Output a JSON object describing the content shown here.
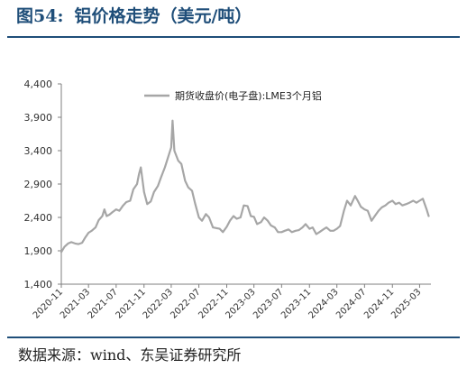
{
  "figure": {
    "number": "图54:",
    "title": "铝价格走势（美元/吨）",
    "source": "数据来源：wind、东吴证券研究所"
  },
  "colors": {
    "title": "#1f4e79",
    "rule": "#1f4e79",
    "series": "#a6a6a6",
    "axis": "#7f7f7f"
  },
  "chart_data": {
    "type": "line",
    "title": "",
    "xlabel": "",
    "ylabel": "",
    "ylim": [
      1400,
      4400
    ],
    "yticks": [
      "1,400",
      "1,900",
      "2,400",
      "2,900",
      "3,400",
      "3,900",
      "4,400"
    ],
    "ytick_values": [
      1400,
      1900,
      2400,
      2900,
      3400,
      3900,
      4400
    ],
    "xlim": [
      "2020-11-01",
      "2025-04-20"
    ],
    "xticks": [
      "2020-11",
      "2021-03",
      "2021-07",
      "2021-11",
      "2022-03",
      "2022-07",
      "2022-11",
      "2023-03",
      "2023-07",
      "2023-11",
      "2024-03",
      "2024-07",
      "2024-11",
      "2025-03"
    ],
    "grid": false,
    "legend": "top-center",
    "series": [
      {
        "name": "期货收盘价(电子盘):LME3个月铝",
        "x": [
          "2020-11-01",
          "2020-11-15",
          "2020-12-01",
          "2020-12-15",
          "2021-01-01",
          "2021-01-15",
          "2021-02-01",
          "2021-02-15",
          "2021-03-01",
          "2021-03-15",
          "2021-04-01",
          "2021-04-15",
          "2021-05-01",
          "2021-05-10",
          "2021-05-20",
          "2021-06-01",
          "2021-06-15",
          "2021-07-01",
          "2021-07-15",
          "2021-08-01",
          "2021-08-15",
          "2021-09-01",
          "2021-09-15",
          "2021-10-01",
          "2021-10-10",
          "2021-10-18",
          "2021-11-01",
          "2021-11-15",
          "2021-12-01",
          "2021-12-15",
          "2022-01-01",
          "2022-01-15",
          "2022-02-01",
          "2022-02-15",
          "2022-03-01",
          "2022-03-07",
          "2022-03-15",
          "2022-04-01",
          "2022-04-15",
          "2022-05-01",
          "2022-05-15",
          "2022-06-01",
          "2022-06-15",
          "2022-07-01",
          "2022-07-15",
          "2022-08-01",
          "2022-08-15",
          "2022-09-01",
          "2022-09-15",
          "2022-10-01",
          "2022-10-15",
          "2022-11-01",
          "2022-11-15",
          "2022-12-01",
          "2022-12-15",
          "2023-01-01",
          "2023-01-15",
          "2023-02-01",
          "2023-02-15",
          "2023-03-01",
          "2023-03-15",
          "2023-04-01",
          "2023-04-15",
          "2023-05-01",
          "2023-05-15",
          "2023-06-01",
          "2023-06-15",
          "2023-07-01",
          "2023-07-15",
          "2023-08-01",
          "2023-08-15",
          "2023-09-01",
          "2023-09-15",
          "2023-10-01",
          "2023-10-15",
          "2023-11-01",
          "2023-11-15",
          "2023-12-01",
          "2023-12-15",
          "2024-01-01",
          "2024-01-15",
          "2024-02-01",
          "2024-02-15",
          "2024-03-01",
          "2024-03-15",
          "2024-04-01",
          "2024-04-15",
          "2024-05-01",
          "2024-05-20",
          "2024-06-01",
          "2024-06-15",
          "2024-07-01",
          "2024-07-15",
          "2024-08-01",
          "2024-08-15",
          "2024-09-01",
          "2024-09-15",
          "2024-10-01",
          "2024-10-15",
          "2024-11-01",
          "2024-11-15",
          "2024-12-01",
          "2024-12-15",
          "2025-01-01",
          "2025-01-15",
          "2025-02-01",
          "2025-02-15",
          "2025-03-01",
          "2025-03-15",
          "2025-04-01",
          "2025-04-10"
        ],
        "values": [
          1880,
          1960,
          2010,
          2030,
          2010,
          2000,
          2020,
          2100,
          2170,
          2200,
          2250,
          2360,
          2420,
          2520,
          2420,
          2440,
          2480,
          2520,
          2500,
          2580,
          2630,
          2650,
          2820,
          2900,
          3050,
          3150,
          2780,
          2600,
          2640,
          2780,
          2870,
          3000,
          3150,
          3300,
          3450,
          3850,
          3400,
          3250,
          3200,
          2950,
          2850,
          2800,
          2600,
          2400,
          2350,
          2450,
          2400,
          2250,
          2240,
          2230,
          2180,
          2260,
          2350,
          2420,
          2380,
          2400,
          2580,
          2570,
          2420,
          2410,
          2300,
          2330,
          2400,
          2350,
          2280,
          2250,
          2180,
          2180,
          2200,
          2220,
          2180,
          2200,
          2210,
          2250,
          2300,
          2230,
          2250,
          2150,
          2180,
          2220,
          2250,
          2200,
          2200,
          2230,
          2270,
          2500,
          2650,
          2580,
          2720,
          2650,
          2560,
          2520,
          2500,
          2350,
          2420,
          2500,
          2550,
          2580,
          2620,
          2650,
          2600,
          2620,
          2580,
          2600,
          2620,
          2650,
          2620,
          2650,
          2680,
          2520,
          2420
        ]
      }
    ]
  }
}
